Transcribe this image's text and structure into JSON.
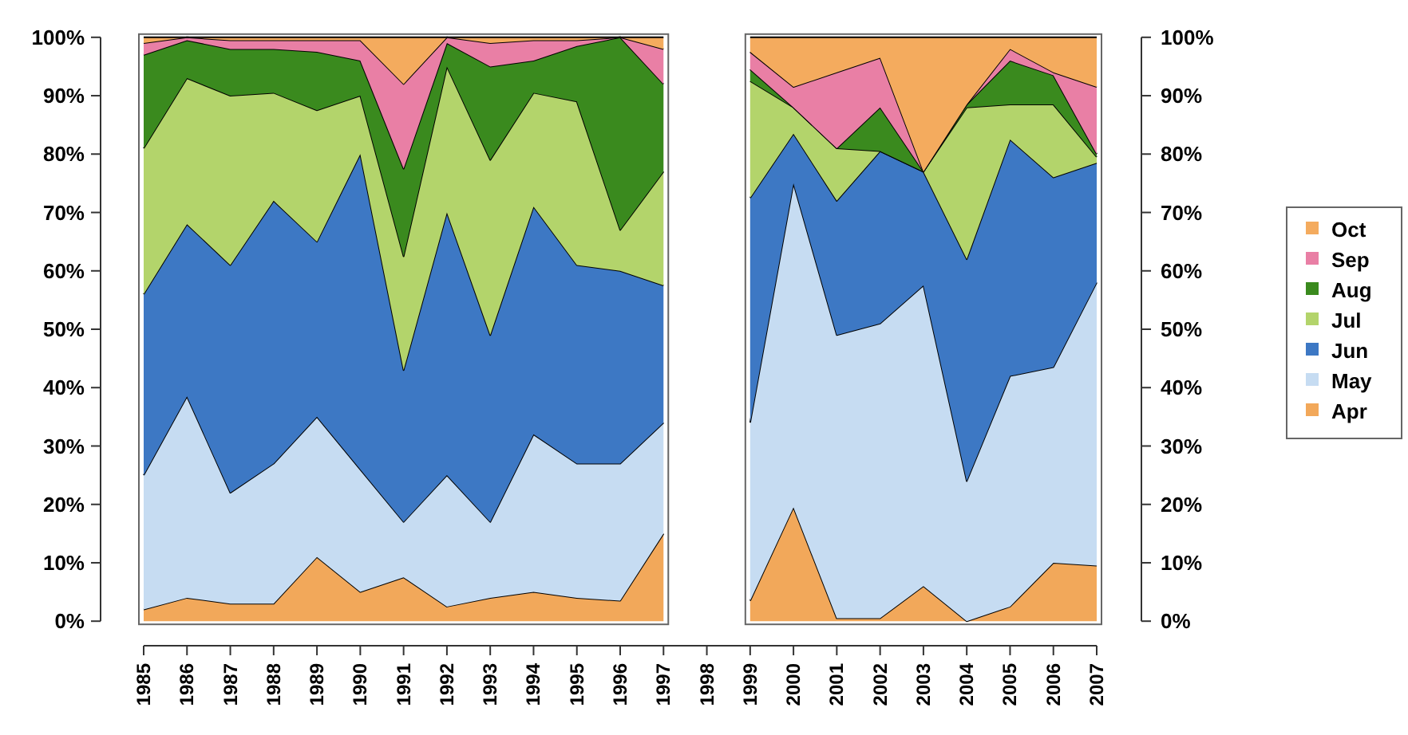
{
  "chart_data": {
    "type": "area",
    "stacked": true,
    "categories": [
      "1985",
      "1986",
      "1987",
      "1988",
      "1989",
      "1990",
      "1991",
      "1992",
      "1993",
      "1994",
      "1995",
      "1996",
      "1997",
      "1998",
      "1999",
      "2000",
      "2001",
      "2002",
      "2003",
      "2004",
      "2005",
      "2006",
      "2007"
    ],
    "series": [
      {
        "name": "Apr",
        "color": "#f2a85a",
        "values": [
          2,
          4,
          3,
          3,
          11,
          5,
          7.5,
          2.5,
          4,
          5,
          4,
          3.5,
          15,
          null,
          3.5,
          19.5,
          0.5,
          0.5,
          6,
          0,
          2.5,
          10,
          9.5
        ]
      },
      {
        "name": "May",
        "color": "#c6dcf2",
        "values": [
          23,
          34.5,
          19,
          24,
          24,
          21,
          9.5,
          22.5,
          13,
          27,
          23,
          23.5,
          19,
          null,
          30.5,
          55.5,
          48.5,
          50.5,
          51.5,
          24,
          39.5,
          33.5,
          48.5
        ]
      },
      {
        "name": "Jun",
        "color": "#3d78c4",
        "values": [
          31,
          29.5,
          39,
          45,
          30,
          54,
          26,
          45,
          32,
          39,
          34,
          33,
          23.5,
          null,
          38.5,
          8.5,
          23,
          29.5,
          19.5,
          38,
          40.5,
          32.5,
          20.5
        ]
      },
      {
        "name": "Jul",
        "color": "#b3d46b",
        "values": [
          25,
          25,
          29,
          18.5,
          22.5,
          10,
          19.5,
          25,
          30,
          19.5,
          28,
          7,
          19.5,
          null,
          20,
          4.5,
          9,
          0,
          0,
          26,
          6,
          12.5,
          1
        ]
      },
      {
        "name": "Aug",
        "color": "#3a8a1e",
        "values": [
          16,
          6.5,
          8,
          7.5,
          10,
          6,
          15,
          4,
          16,
          5.5,
          9.5,
          33,
          15,
          null,
          2,
          0,
          0,
          7.5,
          0,
          0.5,
          7.5,
          5,
          0.5
        ]
      },
      {
        "name": "Sep",
        "color": "#e97fa5",
        "values": [
          2,
          0.5,
          1.5,
          1.5,
          2,
          3.5,
          14.5,
          1,
          4,
          3.5,
          1,
          0,
          6,
          null,
          3,
          3.5,
          13,
          8.5,
          0,
          0,
          2,
          0.5,
          11.5
        ]
      },
      {
        "name": "Oct",
        "color": "#f4ab5e",
        "values": [
          1,
          0,
          0.5,
          0.5,
          0.5,
          0.5,
          8,
          0,
          1,
          0.5,
          0.5,
          0,
          2,
          null,
          2.5,
          8.5,
          6,
          3.5,
          23,
          11.5,
          2,
          6,
          8.5
        ]
      }
    ],
    "ylim": [
      0,
      100
    ],
    "yticks": [
      {
        "value": 0,
        "label": "0%"
      },
      {
        "value": 10,
        "label": "10%"
      },
      {
        "value": 20,
        "label": "20%"
      },
      {
        "value": 30,
        "label": "30%"
      },
      {
        "value": 40,
        "label": "40%"
      },
      {
        "value": 50,
        "label": "50%"
      },
      {
        "value": 60,
        "label": "60%"
      },
      {
        "value": 70,
        "label": "70%"
      },
      {
        "value": 80,
        "label": "80%"
      },
      {
        "value": 90,
        "label": "90%"
      },
      {
        "value": 100,
        "label": "100%"
      }
    ],
    "y2lim": [
      0,
      100
    ],
    "y2ticks": [
      {
        "value": 0,
        "label": "0%"
      },
      {
        "value": 10,
        "label": "10%"
      },
      {
        "value": 20,
        "label": "20%"
      },
      {
        "value": 30,
        "label": "30%"
      },
      {
        "value": 40,
        "label": "40%"
      },
      {
        "value": 50,
        "label": "50%"
      },
      {
        "value": 60,
        "label": "60%"
      },
      {
        "value": 70,
        "label": "70%"
      },
      {
        "value": 80,
        "label": "80%"
      },
      {
        "value": 90,
        "label": "90%"
      },
      {
        "value": 100,
        "label": "100%"
      }
    ],
    "legend": "right"
  }
}
